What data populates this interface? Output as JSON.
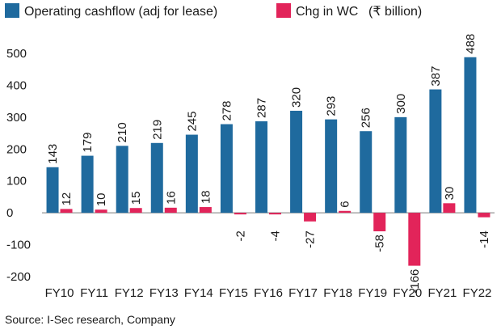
{
  "chart_data": {
    "type": "bar",
    "categories": [
      "FY10",
      "FY11",
      "FY12",
      "FY13",
      "FY14",
      "FY15",
      "FY16",
      "FY17",
      "FY18",
      "FY19",
      "FY20",
      "FY21",
      "FY22"
    ],
    "series": [
      {
        "name": "Operating cashflow (adj for lease)",
        "color": "#1f6a9e",
        "values": [
          143,
          179,
          210,
          219,
          245,
          278,
          287,
          320,
          293,
          256,
          300,
          387,
          488
        ],
        "labels": [
          "143",
          "179",
          "210",
          "219",
          "245",
          "278",
          "287",
          "320",
          "293",
          "256",
          "300",
          "387",
          "488"
        ]
      },
      {
        "name": "Chg in WC",
        "color": "#e2245a",
        "values": [
          12,
          10,
          15,
          16,
          18,
          -2,
          -4,
          -27,
          6,
          -58,
          -166,
          30,
          -14
        ],
        "labels": [
          "12",
          "10",
          "15",
          "16",
          "18",
          "-2",
          "-4",
          "-27",
          "6",
          "-58",
          "-166",
          "30",
          "-14"
        ]
      }
    ],
    "unit_label": "(₹ billion)",
    "ylim": [
      -200,
      500
    ],
    "yticks": [
      "500",
      "400",
      "300",
      "200",
      "100",
      "0",
      "-100",
      "-200"
    ],
    "ytick_values": [
      500,
      400,
      300,
      200,
      100,
      0,
      -100,
      -200
    ],
    "legend_position": "top",
    "grid": false,
    "source": "Source: I-Sec research, Company"
  }
}
